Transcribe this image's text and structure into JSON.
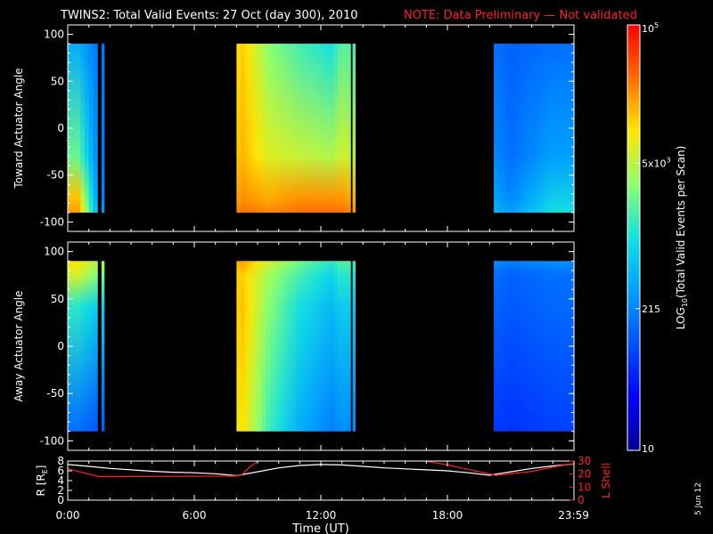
{
  "header": {
    "title": "TWINS2: Total Valid Events: 27 Oct (day 300), 2010",
    "note": "NOTE: Data Preliminary — Not validated"
  },
  "colors": {
    "background": "#000000",
    "axis": "#ffffff",
    "note": "#ff2020",
    "lshell": "#ff2020",
    "radius": "#ffffff"
  },
  "colorbar": {
    "label_prefix": "LOG",
    "label_sub": "10",
    "label_suffix": "(Total Valid Events per Scan)",
    "ticks": [
      {
        "base": "10",
        "sup": "5",
        "value": 100000
      },
      {
        "base": "5x10",
        "sup": "3",
        "value": 5000
      },
      {
        "base": "215",
        "sup": "",
        "value": 215
      },
      {
        "base": "10",
        "sup": "",
        "value": 10
      }
    ],
    "scale": "log",
    "range": [
      10,
      100000
    ]
  },
  "stamp": "5 Jun 12",
  "chart_data": [
    {
      "type": "heatmap",
      "ylabel": "Toward Actuator Angle",
      "ylim": [
        -110,
        110
      ],
      "yticks": [
        100,
        50,
        0,
        -50,
        -100
      ],
      "angle_range": [
        -90,
        90
      ],
      "data_intervals_hours": [
        [
          0.0,
          1.4
        ],
        [
          1.6,
          1.72
        ],
        [
          8.0,
          13.4
        ],
        [
          13.5,
          13.62
        ],
        [
          20.2,
          24.0
        ]
      ],
      "anomaly_level_deg": -75,
      "log_events_by_hour_top": [
        [
          0.5,
          2.6
        ],
        [
          1.5,
          2.2
        ],
        [
          8.3,
          4.1
        ],
        [
          9.5,
          3.5
        ],
        [
          11.0,
          3.2
        ],
        [
          12.5,
          3.0
        ],
        [
          13.0,
          3.3
        ],
        [
          21.0,
          2.1
        ],
        [
          23.0,
          2.2
        ]
      ],
      "log_events_by_hour_bottom": [
        [
          0.5,
          4.3
        ],
        [
          1.5,
          2.4
        ],
        [
          8.3,
          4.5
        ],
        [
          9.5,
          4.4
        ],
        [
          11.0,
          4.5
        ],
        [
          12.5,
          4.5
        ],
        [
          13.0,
          4.5
        ],
        [
          21.0,
          2.5
        ],
        [
          23.0,
          3.0
        ]
      ]
    },
    {
      "type": "heatmap",
      "ylabel": "Away Actuator Angle",
      "ylim": [
        -110,
        110
      ],
      "yticks": [
        100,
        50,
        0,
        -50,
        -100
      ],
      "angle_range": [
        -90,
        90
      ],
      "data_intervals_hours": [
        [
          0.0,
          1.4
        ],
        [
          1.6,
          1.72
        ],
        [
          8.0,
          13.4
        ],
        [
          13.5,
          13.62
        ],
        [
          20.2,
          24.0
        ]
      ],
      "anomaly_level_deg": 75,
      "log_events_by_hour_top": [
        [
          0.5,
          4.0
        ],
        [
          1.5,
          3.6
        ],
        [
          8.3,
          4.3
        ],
        [
          9.5,
          3.8
        ],
        [
          11.0,
          3.4
        ],
        [
          12.5,
          3.1
        ],
        [
          13.0,
          3.3
        ],
        [
          21.0,
          2.3
        ],
        [
          23.0,
          2.4
        ]
      ],
      "log_events_by_hour_bottom": [
        [
          0.5,
          2.2
        ],
        [
          1.5,
          2.0
        ],
        [
          8.3,
          4.0
        ],
        [
          9.5,
          3.2
        ],
        [
          11.0,
          2.6
        ],
        [
          12.5,
          2.3
        ],
        [
          13.0,
          2.4
        ],
        [
          21.0,
          1.8
        ],
        [
          23.0,
          1.9
        ]
      ]
    },
    {
      "type": "line",
      "xlabel": "Time (UT)",
      "xlim": [
        0,
        24
      ],
      "xticks": [
        0,
        6,
        12,
        18,
        23.983
      ],
      "xticklabels": [
        "0:00",
        "6:00",
        "12:00",
        "18:00",
        "23:59"
      ],
      "left_axis": {
        "label_prefix": "R [R",
        "label_sub": "E",
        "label_suffix": "]",
        "ylim": [
          0,
          8
        ],
        "yticks": [
          0,
          2,
          4,
          6,
          8
        ]
      },
      "right_axis": {
        "label": "L Shell",
        "ylim": [
          0,
          30
        ],
        "yticks": [
          0,
          10,
          20,
          30
        ]
      },
      "series": [
        {
          "axis": "left",
          "x": [
            0,
            1,
            2,
            3,
            4,
            5,
            6,
            7,
            8,
            9,
            10,
            11,
            12,
            13,
            14,
            15,
            16,
            17,
            18,
            19,
            20,
            21,
            22,
            23,
            24
          ],
          "values": [
            7.3,
            6.9,
            6.5,
            6.2,
            5.9,
            5.7,
            5.6,
            5.4,
            5.0,
            5.8,
            6.6,
            7.1,
            7.3,
            7.2,
            6.9,
            6.6,
            6.4,
            6.2,
            6.0,
            5.6,
            5.1,
            5.8,
            6.5,
            7.0,
            7.4
          ]
        },
        {
          "axis": "right",
          "x": [
            0,
            1.5,
            8,
            8.3,
            8.6,
            9.0,
            9.2,
            15.5,
            18.0,
            20.3,
            22.0,
            23.2,
            24
          ],
          "values": [
            24,
            18,
            18.5,
            20,
            25,
            30,
            34,
            34,
            27,
            19,
            22,
            26,
            28
          ]
        }
      ]
    }
  ]
}
